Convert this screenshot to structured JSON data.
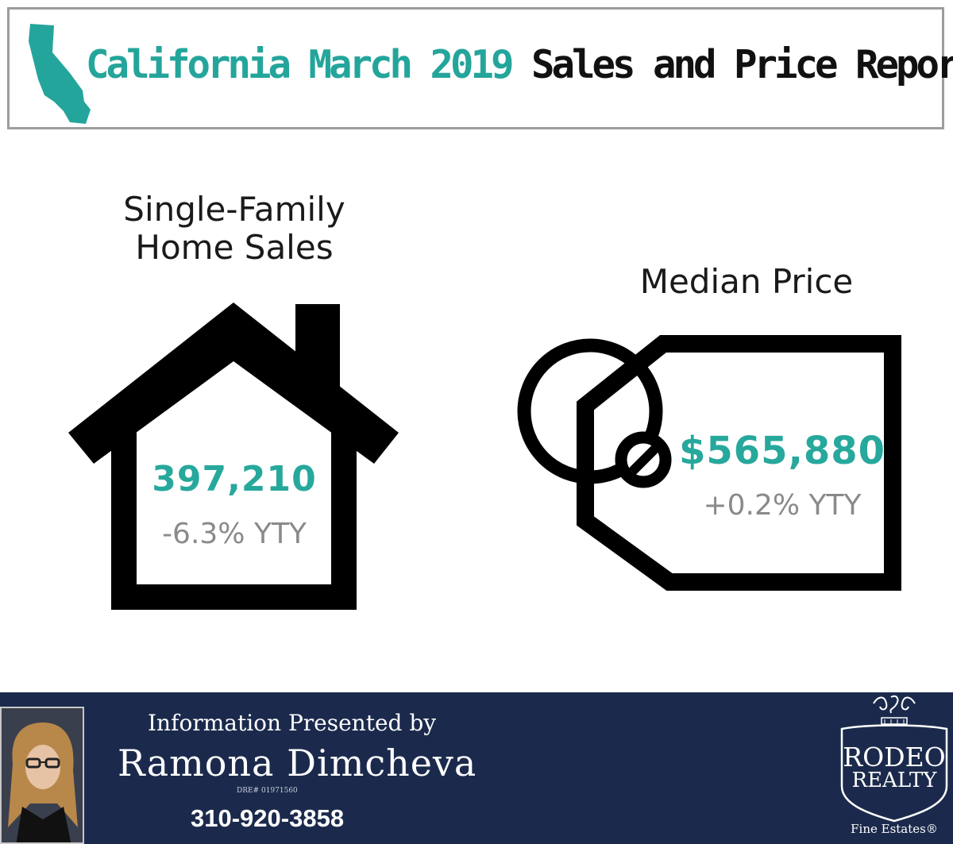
{
  "header": {
    "title_highlight": "California March 2019",
    "title_rest": "Sales and Price Report",
    "accent_color": "#24a59b",
    "icon": "california-map-icon"
  },
  "sales": {
    "heading_line1": "Single-Family",
    "heading_line2": "Home Sales",
    "value": "397,210",
    "change": "-6.3% YTY",
    "icon": "house-icon"
  },
  "price": {
    "heading": "Median Price",
    "value": "$565,880",
    "change": "+0.2% YTY",
    "icon": "price-tag-icon"
  },
  "footer": {
    "presented_by": "Information Presented by",
    "agent_name": "Ramona Dimcheva",
    "dre": "DRE# 01971560",
    "phone": "310-920-3858",
    "background_color": "#1b2a4c",
    "logo": {
      "line1": "RODEO",
      "line2": "REALTY",
      "line3": "Fine Estates®"
    }
  }
}
